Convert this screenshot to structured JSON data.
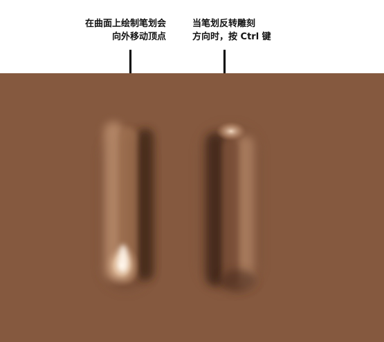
{
  "captions": {
    "left": {
      "line1": "在曲面上绘制笔划会",
      "line2": "向外移动顶点"
    },
    "right": {
      "line1": "当笔划反转雕刻",
      "line2": "方向时，按 Ctrl 键"
    }
  },
  "colors": {
    "surface": "#85593f",
    "highlight": "#fff0e0",
    "shadow": "#3a2212",
    "pointer": "#000000"
  }
}
